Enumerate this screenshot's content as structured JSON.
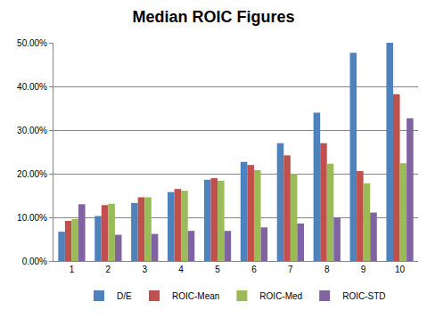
{
  "chart_data": {
    "type": "bar",
    "title": "Median ROIC Figures",
    "categories": [
      "1",
      "2",
      "3",
      "4",
      "5",
      "6",
      "7",
      "8",
      "9",
      "10"
    ],
    "series": [
      {
        "name": "D/E",
        "color": "#4f81bd",
        "values": [
          6.7,
          10.3,
          13.3,
          15.8,
          18.6,
          22.7,
          27.0,
          34.0,
          47.7,
          50.0
        ]
      },
      {
        "name": "ROIC-Mean",
        "color": "#c0504d",
        "values": [
          9.2,
          12.8,
          14.6,
          16.5,
          19.0,
          22.0,
          24.2,
          27.0,
          20.6,
          38.2
        ]
      },
      {
        "name": "ROIC-Med",
        "color": "#9bbb59",
        "values": [
          9.6,
          13.1,
          14.6,
          16.1,
          18.4,
          20.8,
          20.0,
          22.3,
          17.8,
          22.4
        ]
      },
      {
        "name": "ROIC-STD",
        "color": "#8064a2",
        "values": [
          13.0,
          6.0,
          6.2,
          6.9,
          6.9,
          7.7,
          8.6,
          10.0,
          11.1,
          32.7
        ]
      }
    ],
    "ylim": [
      0,
      50
    ],
    "yticks": [
      {
        "value": 0,
        "label": "0.00%"
      },
      {
        "value": 10,
        "label": "10.00%"
      },
      {
        "value": 20,
        "label": "20.00%"
      },
      {
        "value": 30,
        "label": "30.00%"
      },
      {
        "value": 40,
        "label": "40.00%"
      },
      {
        "value": 50,
        "label": "50.00%"
      }
    ],
    "grid": true,
    "legend": "bottom"
  }
}
